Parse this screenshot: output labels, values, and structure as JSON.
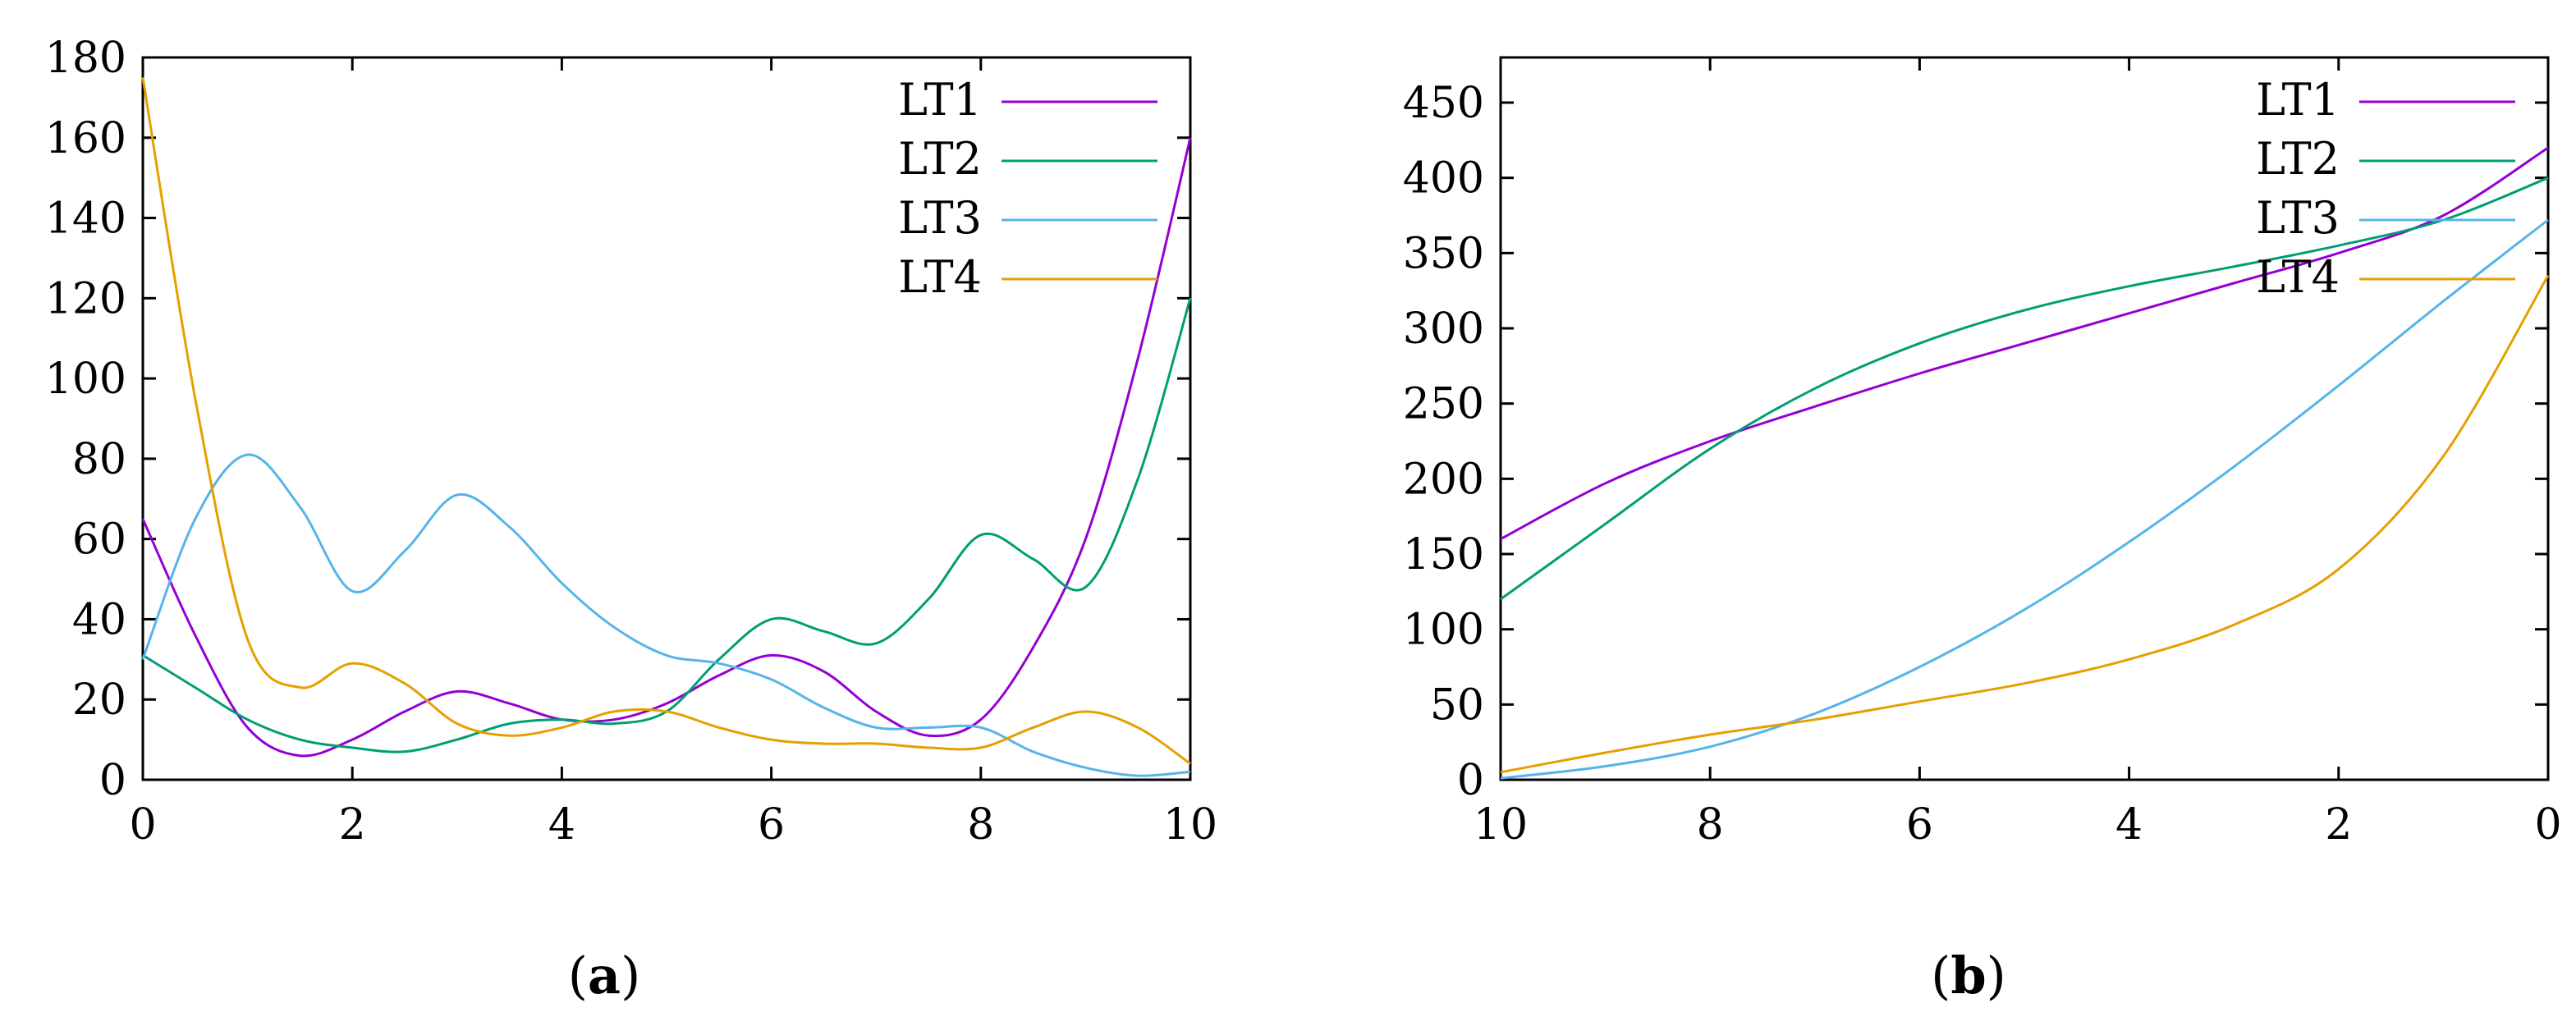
{
  "chart_data": [
    {
      "type": "line",
      "caption_letter": "a",
      "xlim": [
        0,
        10
      ],
      "ylim": [
        0,
        180
      ],
      "xticks": [
        "0",
        "2",
        "4",
        "6",
        "8",
        "10"
      ],
      "yticks": [
        "0",
        "20",
        "40",
        "60",
        "80",
        "100",
        "120",
        "140",
        "160",
        "180"
      ],
      "legend_position": "top-right",
      "grid": false,
      "series": [
        {
          "name": "LT1",
          "color": "#9400d3",
          "x": [
            0,
            0.5,
            1,
            1.5,
            2,
            2.5,
            3,
            3.5,
            4,
            4.5,
            5,
            5.5,
            6,
            6.5,
            7,
            7.5,
            8,
            8.5,
            9,
            9.5,
            10
          ],
          "y": [
            65,
            36,
            13,
            6,
            10,
            17,
            22,
            19,
            15,
            15,
            19,
            26,
            31,
            27,
            17,
            11,
            15,
            33,
            60,
            105,
            160
          ]
        },
        {
          "name": "LT2",
          "color": "#009e73",
          "x": [
            0,
            0.5,
            1,
            1.5,
            2,
            2.5,
            3,
            3.5,
            4,
            4.5,
            5,
            5.5,
            6,
            6.5,
            7,
            7.5,
            8,
            8.5,
            9,
            9.5,
            10
          ],
          "y": [
            31,
            23,
            15,
            10,
            8,
            7,
            10,
            14,
            15,
            14,
            17,
            30,
            40,
            37,
            34,
            45,
            61,
            55,
            48,
            75,
            120
          ]
        },
        {
          "name": "LT3",
          "color": "#56b4e9",
          "x": [
            0,
            0.5,
            1,
            1.5,
            2,
            2.5,
            3,
            3.5,
            4,
            4.5,
            5,
            5.5,
            6,
            6.5,
            7,
            7.5,
            8,
            8.5,
            9,
            9.5,
            10
          ],
          "y": [
            30,
            65,
            81,
            68,
            47,
            57,
            71,
            63,
            49,
            38,
            31,
            29,
            25,
            18,
            13,
            13,
            13,
            7,
            3,
            1,
            2
          ]
        },
        {
          "name": "LT4",
          "color": "#e69f00",
          "x": [
            0,
            0.5,
            1,
            1.5,
            2,
            2.5,
            3,
            3.5,
            4,
            4.5,
            5,
            5.5,
            6,
            6.5,
            7,
            7.5,
            8,
            8.5,
            9,
            9.5,
            10
          ],
          "y": [
            175,
            95,
            35,
            23,
            29,
            24,
            14,
            11,
            13,
            17,
            17,
            13,
            10,
            9,
            9,
            8,
            8,
            13,
            17,
            13,
            4
          ]
        }
      ]
    },
    {
      "type": "line",
      "caption_letter": "b",
      "xlim": [
        10,
        0
      ],
      "ylim": [
        0,
        480
      ],
      "xticks": [
        "10",
        "8",
        "6",
        "4",
        "2",
        "0"
      ],
      "yticks": [
        "0",
        "50",
        "100",
        "150",
        "200",
        "250",
        "300",
        "350",
        "400",
        "450"
      ],
      "legend_position": "top-right",
      "grid": false,
      "series": [
        {
          "name": "LT1",
          "color": "#9400d3",
          "x": [
            10,
            9,
            8,
            7,
            6,
            5,
            4,
            3,
            2,
            1,
            0
          ],
          "y": [
            160,
            197,
            225,
            248,
            270,
            290,
            310,
            330,
            350,
            375,
            420
          ]
        },
        {
          "name": "LT2",
          "color": "#009e73",
          "x": [
            10,
            9,
            8,
            7,
            6,
            5,
            4,
            3,
            2,
            1,
            0
          ],
          "y": [
            120,
            170,
            220,
            260,
            290,
            312,
            328,
            341,
            355,
            372,
            400
          ]
        },
        {
          "name": "LT3",
          "color": "#56b4e9",
          "x": [
            10,
            9,
            8,
            7,
            6,
            5,
            4,
            3,
            2,
            1,
            0
          ],
          "y": [
            1,
            9,
            22,
            44,
            75,
            113,
            158,
            208,
            262,
            318,
            372
          ]
        },
        {
          "name": "LT4",
          "color": "#e69f00",
          "x": [
            10,
            9,
            8,
            7,
            6,
            5,
            4,
            3,
            2,
            1,
            0
          ],
          "y": [
            5,
            18,
            30,
            40,
            52,
            64,
            80,
            103,
            140,
            215,
            335
          ]
        }
      ]
    }
  ]
}
